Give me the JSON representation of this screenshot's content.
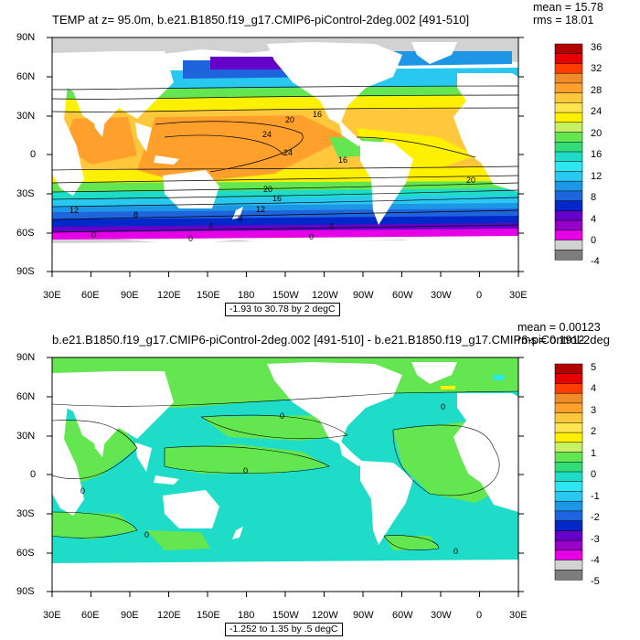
{
  "panels": [
    {
      "title": "TEMP at z=  95.0m, b.e21.B1850.f19_g17.CMIP6-piControl-2deg.002 [491-510]",
      "mean": "mean = 15.78",
      "rms": "rms = 18.01",
      "range_note": "-1.93 to 30.78 by 2 degC",
      "lat_labels": [
        "90N",
        "60N",
        "30N",
        "0",
        "30S",
        "60S",
        "90S"
      ],
      "lon_labels": [
        "30E",
        "60E",
        "90E",
        "120E",
        "150E",
        "180",
        "150W",
        "120W",
        "90W",
        "60W",
        "30W",
        "0",
        "30E"
      ],
      "colorbar": {
        "labels": [
          "36",
          "32",
          "28",
          "24",
          "20",
          "16",
          "12",
          "8",
          "4",
          "0",
          "-4"
        ],
        "colors": [
          "#b40000",
          "#e60000",
          "#ff3c00",
          "#f08c28",
          "#ffa02d",
          "#ffc83c",
          "#ffe650",
          "#fff000",
          "#c8f064",
          "#64e650",
          "#32dc78",
          "#1edcc8",
          "#2de6f0",
          "#28c8f0",
          "#1e96e6",
          "#1e64dc",
          "#0028c8",
          "#6400c8",
          "#9600c8",
          "#e600e6",
          "#d2d2d2",
          "#7d7d7d"
        ]
      },
      "contour_labels": [
        "20",
        "16",
        "24",
        "24",
        "16",
        "20",
        "20",
        "16",
        "12",
        "12",
        "8",
        "8",
        "4",
        "0",
        "0",
        "0",
        "4"
      ]
    },
    {
      "title": "b.e21.B1850.f19_g17.CMIP6-piControl-2deg.002 [491-510] - b.e21.B1850.f19_g17.CMIP6-piControl-2deg",
      "mean": "mean = 0.00123",
      "rms": "rms = 0.1912",
      "range_note": "-1.252 to 1.35 by .5 degC",
      "lat_labels": [
        "90N",
        "60N",
        "30N",
        "0",
        "30S",
        "60S",
        "90S"
      ],
      "lon_labels": [
        "30E",
        "60E",
        "90E",
        "120E",
        "150E",
        "180",
        "150W",
        "120W",
        "90W",
        "60W",
        "30W",
        "0",
        "30E"
      ],
      "colorbar": {
        "labels": [
          "5",
          "4",
          "3",
          "2",
          "1",
          "0",
          "-1",
          "-2",
          "-3",
          "-4",
          "-5"
        ],
        "colors": [
          "#b40000",
          "#e60000",
          "#ff3c00",
          "#f08c28",
          "#ffa02d",
          "#ffc83c",
          "#ffe650",
          "#fff000",
          "#c8f064",
          "#64e650",
          "#32dc78",
          "#1edcc8",
          "#2de6f0",
          "#28c8f0",
          "#1e96e6",
          "#1e64dc",
          "#0028c8",
          "#6400c8",
          "#9600c8",
          "#e600e6",
          "#d2d2d2",
          "#7d7d7d"
        ]
      },
      "contour_labels": [
        "0",
        "0",
        "0",
        "0",
        "0",
        "0"
      ]
    }
  ],
  "palette": {
    "land": "#ffffff",
    "sea_ice_gray": "#d2d2d2",
    "frame": "#000000"
  }
}
